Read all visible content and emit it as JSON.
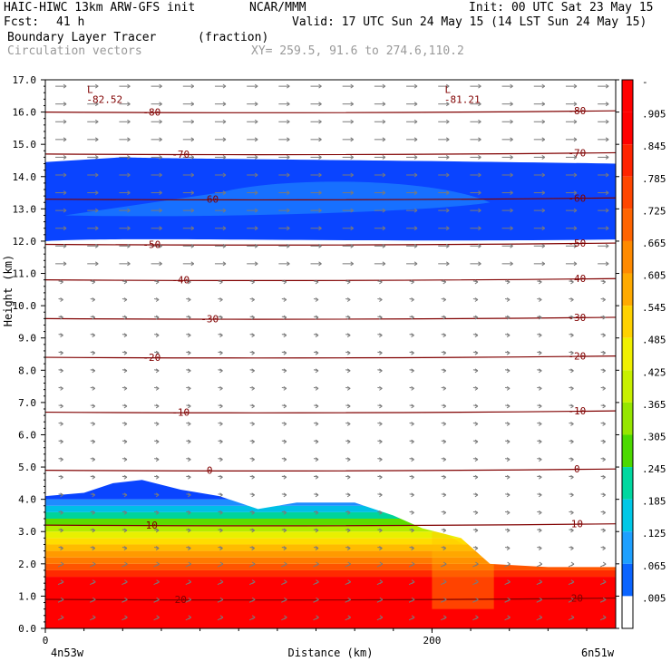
{
  "header": {
    "model": "HAIC-HIWC 13km ARW-GFS init",
    "org": "NCAR/MMM",
    "init": "Init: 00 UTC Sat 23 May 15",
    "fcst_label": "Fcst:",
    "fcst_value": "41 h",
    "valid": "Valid: 17 UTC Sun 24 May 15 (14 LST Sun 24 May 15)",
    "field_name": "Boundary Layer Tracer",
    "field_units": "(fraction)",
    "vector_label": "Circulation vectors",
    "xy_label": "XY= 259.5, 91.6 to 274.6,110.2"
  },
  "chart_data": {
    "type": "heatmap",
    "ylabel": "Height (km)",
    "xlabel": "Distance (km)",
    "ylim": [
      0,
      17
    ],
    "xlim": [
      0,
      295
    ],
    "y_ticks": [
      "0.0",
      "1.0",
      "2.0",
      "3.0",
      "4.0",
      "5.0",
      "6.0",
      "7.0",
      "8.0",
      "9.0",
      "10.0",
      "11.0",
      "12.0",
      "13.0",
      "14.0",
      "15.0",
      "16.0",
      "17.0"
    ],
    "x_ticks": [
      {
        "value": 0,
        "label": "0"
      },
      {
        "value": 200,
        "label": "200"
      }
    ],
    "x_end_labels": {
      "left": "4n53w",
      "right": "6n51w"
    },
    "colorbar_labels": [
      "-",
      ".905",
      ".845",
      ".785",
      ".725",
      ".665",
      ".605",
      ".545",
      ".485",
      ".425",
      ".365",
      ".305",
      ".245",
      ".185",
      ".125",
      ".065",
      ".005"
    ],
    "colorbar_colors": [
      "#ff0000",
      "#ff0000",
      "#ff2400",
      "#ff4600",
      "#ff6400",
      "#ff8a00",
      "#ffaa00",
      "#ffd200",
      "#f0f000",
      "#c8f000",
      "#96e600",
      "#4cd900",
      "#00d8a0",
      "#00c8e6",
      "#1ea0ff",
      "#0a64ff",
      "#ffffff"
    ],
    "contours": [
      {
        "label": "-80",
        "y": 16.0
      },
      {
        "label": "-70",
        "y": 14.7
      },
      {
        "label": "-60",
        "y": 13.3
      },
      {
        "label": "-50",
        "y": 11.9
      },
      {
        "label": "-40",
        "y": 10.8
      },
      {
        "label": "-30",
        "y": 9.6
      },
      {
        "label": "-20",
        "y": 8.4
      },
      {
        "label": "-10",
        "y": 6.7
      },
      {
        "label": "0",
        "y": 4.9
      },
      {
        "label": "10",
        "y": 3.2
      },
      {
        "label": "20",
        "y": 0.9
      }
    ],
    "extrema": [
      {
        "symbol": "L",
        "value": "-82.52",
        "x": 25,
        "y": 16.7
      },
      {
        "symbol": "L",
        "value": "-81.21",
        "x": 210,
        "y": 16.7
      }
    ],
    "upper_tracer_layer": {
      "bottom_km": 12.0,
      "top_km": 14.5,
      "core_bottom_km": 12.8,
      "core_top_km": 14.0
    },
    "lower_tracer_top_km": [
      {
        "x": 0,
        "top": 4.1
      },
      {
        "x": 20,
        "top": 4.2
      },
      {
        "x": 35,
        "top": 4.5
      },
      {
        "x": 50,
        "top": 4.6
      },
      {
        "x": 70,
        "top": 4.3
      },
      {
        "x": 90,
        "top": 4.1
      },
      {
        "x": 110,
        "top": 3.7
      },
      {
        "x": 130,
        "top": 3.9
      },
      {
        "x": 160,
        "top": 3.9
      },
      {
        "x": 180,
        "top": 3.5
      },
      {
        "x": 195,
        "top": 3.1
      },
      {
        "x": 215,
        "top": 2.8
      },
      {
        "x": 230,
        "top": 2.0
      },
      {
        "x": 260,
        "top": 1.9
      },
      {
        "x": 295,
        "top": 1.9
      }
    ]
  }
}
